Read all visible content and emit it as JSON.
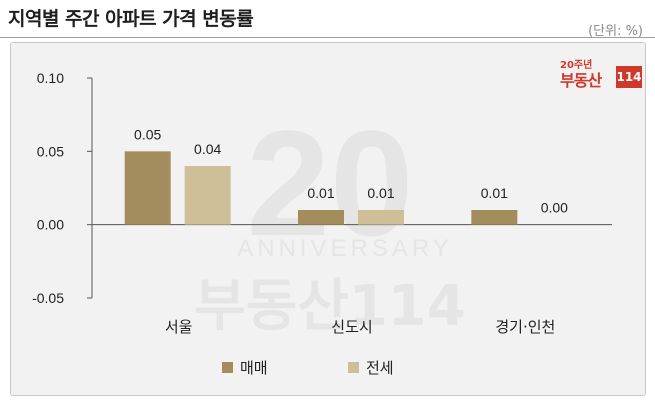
{
  "header": {
    "title": "지역별 주간 아파트 가격 변동률",
    "unit": "(단위: %)"
  },
  "logo": {
    "small": "20주년",
    "main": "부동산",
    "box": "114"
  },
  "chart_data": {
    "type": "bar",
    "categories": [
      "서울",
      "신도시",
      "경기·인천"
    ],
    "series": [
      {
        "name": "매매",
        "values": [
          0.05,
          0.01,
          0.01
        ],
        "labels": [
          "0.05",
          "0.01",
          "0.01"
        ],
        "color": "#a48d5c"
      },
      {
        "name": "전세",
        "values": [
          0.04,
          0.01,
          0.0
        ],
        "labels": [
          "0.04",
          "0.01",
          "0.00"
        ],
        "color": "#cfbf99"
      }
    ],
    "yticks": [
      "0.10",
      "0.05",
      "0.00",
      "-0.05"
    ],
    "ytick_values": [
      0.1,
      0.05,
      0.0,
      -0.05
    ],
    "ylim": [
      -0.05,
      0.1
    ],
    "legend_position": "bottom",
    "grid": false
  }
}
